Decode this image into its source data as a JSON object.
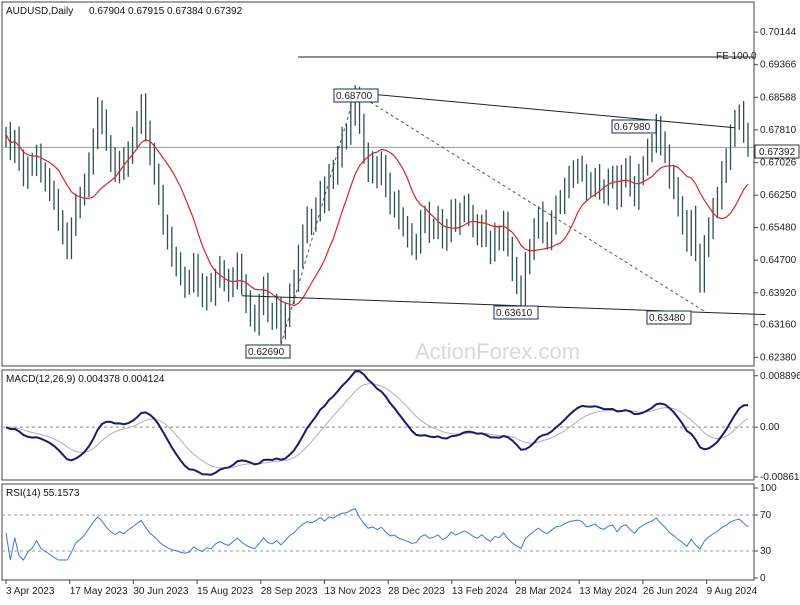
{
  "chart_data": [
    {
      "type": "line",
      "panel": "price",
      "title": "AUDUSD,Daily",
      "ohlc_header": [
        "0.67904",
        "0.67915",
        "0.67384",
        "0.67392"
      ],
      "ylim": [
        0.6222,
        0.7072
      ],
      "y_ticks": [
        "0.70144",
        "0.69366",
        "0.68588",
        "0.67810",
        "0.67026",
        "0.66250",
        "0.65480",
        "0.64700",
        "0.63920",
        "0.63160",
        "0.62380"
      ],
      "current_price_label": "0.67392",
      "fe_label": "FE 100.0",
      "fe_level": 0.6955,
      "x_labels": [
        "3 Apr 2023",
        "17 May 2023",
        "30 Jun 2023",
        "15 Aug 2023",
        "28 Sep 2023",
        "13 Nov 2023",
        "28 Dec 2023",
        "13 Feb 2024",
        "28 Mar 2024",
        "13 May 2024",
        "26 Jun 2024",
        "9 Aug 2024"
      ],
      "annotations": [
        "0.68700",
        "0.67980",
        "0.63610",
        "0.63480",
        "0.62690"
      ],
      "watermark": "ActionForex.com",
      "series": [
        {
          "role": "close",
          "color": "#2f4f4f",
          "values": [
            0.677,
            0.673,
            0.676,
            0.671,
            0.667,
            0.669,
            0.67,
            0.672,
            0.668,
            0.666,
            0.664,
            0.661,
            0.657,
            0.653,
            0.65,
            0.655,
            0.66,
            0.662,
            0.665,
            0.67,
            0.676,
            0.683,
            0.68,
            0.675,
            0.671,
            0.668,
            0.671,
            0.669,
            0.673,
            0.676,
            0.68,
            0.684,
            0.678,
            0.672,
            0.668,
            0.662,
            0.656,
            0.652,
            0.648,
            0.646,
            0.643,
            0.641,
            0.642,
            0.646,
            0.641,
            0.638,
            0.641,
            0.639,
            0.643,
            0.645,
            0.642,
            0.64,
            0.643,
            0.646,
            0.641,
            0.637,
            0.634,
            0.632,
            0.636,
            0.641,
            0.635,
            0.633,
            0.636,
            0.63,
            0.634,
            0.639,
            0.642,
            0.648,
            0.653,
            0.657,
            0.656,
            0.659,
            0.664,
            0.661,
            0.668,
            0.667,
            0.672,
            0.676,
            0.677,
            0.682,
            0.686,
            0.679,
            0.673,
            0.668,
            0.67,
            0.667,
            0.67,
            0.665,
            0.66,
            0.661,
            0.657,
            0.655,
            0.653,
            0.65,
            0.651,
            0.656,
            0.658,
            0.654,
            0.655,
            0.657,
            0.652,
            0.654,
            0.659,
            0.656,
            0.658,
            0.66,
            0.658,
            0.655,
            0.653,
            0.656,
            0.652,
            0.649,
            0.653,
            0.652,
            0.656,
            0.65,
            0.645,
            0.641,
            0.637,
            0.646,
            0.65,
            0.654,
            0.658,
            0.654,
            0.652,
            0.656,
            0.66,
            0.661,
            0.664,
            0.667,
            0.668,
            0.669,
            0.668,
            0.664,
            0.665,
            0.667,
            0.664,
            0.663,
            0.666,
            0.667,
            0.662,
            0.667,
            0.669,
            0.665,
            0.662,
            0.667,
            0.67,
            0.673,
            0.675,
            0.679,
            0.675,
            0.672,
            0.667,
            0.664,
            0.66,
            0.656,
            0.651,
            0.657,
            0.649,
            0.642,
            0.65,
            0.655,
            0.659,
            0.662,
            0.668,
            0.671,
            0.677,
            0.68,
            0.682,
            0.678,
            0.674
          ]
        },
        {
          "role": "sma",
          "color": "#d22828",
          "values": []
        }
      ]
    },
    {
      "type": "line",
      "panel": "macd",
      "title": "MACD(12,26,9) 0.004378 0.004124",
      "ylim": [
        -0.0088,
        0.0092
      ],
      "y_ticks": [
        "0.008896",
        "0.00",
        "-0.008612"
      ],
      "series": [
        {
          "role": "macd",
          "color": "#1a1a6e",
          "values": []
        },
        {
          "role": "signal",
          "color": "#b0b0b0",
          "values": []
        }
      ]
    },
    {
      "type": "line",
      "panel": "rsi",
      "title": "RSI(14) 55.1573",
      "ylim": [
        0,
        100
      ],
      "y_ticks": [
        "100",
        "70",
        "30",
        "0"
      ],
      "levels": [
        70,
        30
      ],
      "series": [
        {
          "role": "rsi",
          "color": "#3c78d8",
          "values": []
        }
      ]
    }
  ]
}
